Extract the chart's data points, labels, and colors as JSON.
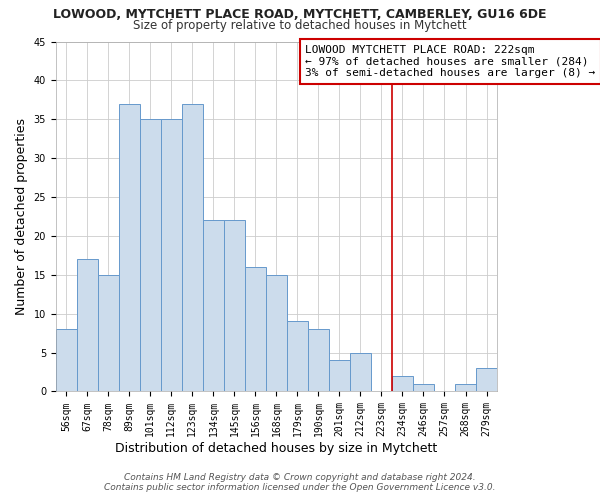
{
  "title": "LOWOOD, MYTCHETT PLACE ROAD, MYTCHETT, CAMBERLEY, GU16 6DE",
  "subtitle": "Size of property relative to detached houses in Mytchett",
  "xlabel": "Distribution of detached houses by size in Mytchett",
  "ylabel": "Number of detached properties",
  "bar_labels": [
    "56sqm",
    "67sqm",
    "78sqm",
    "89sqm",
    "101sqm",
    "112sqm",
    "123sqm",
    "134sqm",
    "145sqm",
    "156sqm",
    "168sqm",
    "179sqm",
    "190sqm",
    "201sqm",
    "212sqm",
    "223sqm",
    "234sqm",
    "246sqm",
    "257sqm",
    "268sqm",
    "279sqm"
  ],
  "bar_values": [
    8,
    17,
    15,
    37,
    35,
    35,
    37,
    22,
    22,
    16,
    15,
    9,
    8,
    4,
    5,
    0,
    2,
    1,
    0,
    1,
    3
  ],
  "bar_color": "#ccdcec",
  "bar_edgecolor": "#6699cc",
  "ylim": [
    0,
    45
  ],
  "yticks": [
    0,
    5,
    10,
    15,
    20,
    25,
    30,
    35,
    40,
    45
  ],
  "vline_x": 15.5,
  "vline_color": "#cc0000",
  "annotation_text": "LOWOOD MYTCHETT PLACE ROAD: 222sqm\n← 97% of detached houses are smaller (284)\n3% of semi-detached houses are larger (8) →",
  "annotation_box_color": "#ffffff",
  "annotation_box_edgecolor": "#cc0000",
  "footer_line1": "Contains HM Land Registry data © Crown copyright and database right 2024.",
  "footer_line2": "Contains public sector information licensed under the Open Government Licence v3.0.",
  "background_color": "#ffffff",
  "grid_color": "#cccccc",
  "title_fontsize": 9,
  "subtitle_fontsize": 8.5,
  "axis_label_fontsize": 9,
  "tick_fontsize": 7,
  "annotation_fontsize": 8,
  "footer_fontsize": 6.5
}
